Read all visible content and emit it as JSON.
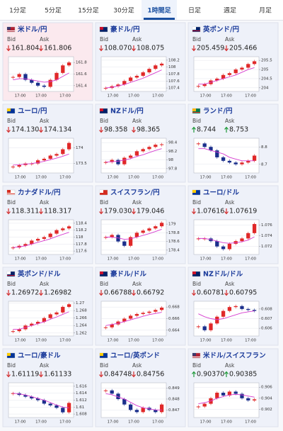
{
  "tabs": [
    "1分足",
    "5分足",
    "15分足",
    "30分足",
    "1時間足",
    "日足",
    "週足",
    "月足"
  ],
  "active_tab": 4,
  "labels": {
    "bid": "Bid",
    "ask": "Ask"
  },
  "time_label": "17:00",
  "cards": [
    {
      "name": "米ドル/円",
      "flag": "us",
      "tint": "pink",
      "bid": "161.804",
      "bid_dir": "down",
      "ask": "161.806",
      "ask_dir": "down",
      "chart": {
        "type": "candlestick",
        "ylim": [
          161.3,
          161.9
        ],
        "yticks": [
          161.4,
          161.6,
          161.8
        ],
        "close": [
          161.55,
          161.6,
          161.5,
          161.45,
          161.4,
          161.38,
          161.5,
          161.62,
          161.75,
          161.8
        ],
        "ma": [
          161.5,
          161.52,
          161.52,
          161.5,
          161.48,
          161.46,
          161.47,
          161.5,
          161.56,
          161.62
        ]
      }
    },
    {
      "name": "豪ドル/円",
      "flag": "au",
      "tint": "blue",
      "bid": "108.070",
      "bid_dir": "down",
      "ask": "108.075",
      "ask_dir": "down",
      "chart": {
        "type": "candlestick",
        "ylim": [
          107.3,
          108.3
        ],
        "yticks": [
          107.4,
          107.6,
          107.8,
          108,
          108.2
        ],
        "close": [
          107.4,
          107.45,
          107.5,
          107.6,
          107.7,
          107.75,
          107.85,
          107.95,
          108.05,
          108.1
        ],
        "ma": [
          107.4,
          107.42,
          107.46,
          107.5,
          107.56,
          107.62,
          107.68,
          107.76,
          107.84,
          107.92
        ]
      }
    },
    {
      "name": "英ポンド/円",
      "flag": "gb",
      "tint": "blue",
      "bid": "205.459",
      "bid_dir": "down",
      "ask": "205.466",
      "ask_dir": "down",
      "chart": {
        "type": "candlestick",
        "ylim": [
          203.8,
          205.7
        ],
        "yticks": [
          204,
          204.5,
          205,
          205.5
        ],
        "close": [
          204.1,
          204.2,
          204.4,
          204.5,
          204.7,
          204.8,
          205,
          205.1,
          205.3,
          205.45
        ],
        "ma": [
          204.2,
          204.2,
          204.3,
          204.4,
          204.5,
          204.6,
          204.7,
          204.85,
          205,
          205.1
        ]
      }
    },
    {
      "name": "ユーロ/円",
      "flag": "eu",
      "tint": "blue",
      "bid": "174.130",
      "bid_dir": "down",
      "ask": "174.134",
      "ask_dir": "down",
      "chart": {
        "type": "candlestick",
        "ylim": [
          173.2,
          174.3
        ],
        "yticks": [
          173.5,
          174
        ],
        "close": [
          173.4,
          173.45,
          173.5,
          173.5,
          173.6,
          173.65,
          173.75,
          173.8,
          173.95,
          174.15
        ],
        "ma": [
          173.45,
          173.46,
          173.48,
          173.5,
          173.53,
          173.57,
          173.62,
          173.67,
          173.73,
          173.8
        ]
      }
    },
    {
      "name": "NZドル/円",
      "flag": "nz",
      "tint": "blue",
      "bid": "98.358",
      "bid_dir": "down",
      "ask": "98.365",
      "ask_dir": "down",
      "chart": {
        "type": "candlestick",
        "ylim": [
          97.7,
          98.5
        ],
        "yticks": [
          97.8,
          98,
          98.2,
          98.4
        ],
        "close": [
          97.95,
          98,
          97.9,
          98.05,
          98.1,
          98.2,
          98.25,
          98.3,
          98.35,
          98.36
        ],
        "ma": [
          97.95,
          97.96,
          97.97,
          98,
          98.03,
          98.08,
          98.12,
          98.17,
          98.22,
          98.26
        ]
      }
    },
    {
      "name": "ランド/円",
      "flag": "za",
      "tint": "blue",
      "bid": "8.744",
      "bid_dir": "up",
      "ask": "8.753",
      "ask_dir": "up",
      "chart": {
        "type": "candlestick",
        "ylim": [
          8.65,
          8.85
        ],
        "yticks": [
          8.7,
          8.8
        ],
        "close": [
          8.82,
          8.8,
          8.78,
          8.74,
          8.72,
          8.71,
          8.7,
          8.71,
          8.72,
          8.75
        ],
        "ma": [
          8.79,
          8.79,
          8.78,
          8.77,
          8.76,
          8.74,
          8.73,
          8.72,
          8.72,
          8.72
        ]
      }
    },
    {
      "name": "カナダドル/円",
      "flag": "ca",
      "tint": "blue",
      "bid": "118.311",
      "bid_dir": "down",
      "ask": "118.317",
      "ask_dir": "down",
      "chart": {
        "type": "candlestick",
        "ylim": [
          117.5,
          118.5
        ],
        "yticks": [
          117.6,
          117.8,
          118,
          118.2,
          118.4
        ],
        "close": [
          117.7,
          117.75,
          117.8,
          117.9,
          117.95,
          118,
          118.1,
          118.2,
          118.25,
          118.31
        ],
        "ma": [
          117.7,
          117.72,
          117.75,
          117.8,
          117.85,
          117.9,
          117.95,
          118.02,
          118.08,
          118.14
        ]
      }
    },
    {
      "name": "スイスフラン/円",
      "flag": "ch",
      "tint": "blue",
      "bid": "179.030",
      "bid_dir": "down",
      "ask": "179.046",
      "ask_dir": "down",
      "chart": {
        "type": "candlestick",
        "ylim": [
          178.3,
          179.1
        ],
        "yticks": [
          178.4,
          178.6,
          178.8,
          179
        ],
        "close": [
          178.7,
          178.75,
          178.6,
          178.5,
          178.7,
          178.8,
          178.85,
          178.9,
          178.95,
          179.03
        ],
        "ma": [
          178.7,
          178.7,
          178.68,
          178.65,
          178.66,
          178.7,
          178.74,
          178.78,
          178.83,
          178.88
        ]
      }
    },
    {
      "name": "ユーロ/ドル",
      "flag": "eu",
      "tint": "blue",
      "bid": "1.07616",
      "bid_dir": "down",
      "ask": "1.07619",
      "ask_dir": "down",
      "chart": {
        "type": "candlestick",
        "ylim": [
          1.0705,
          1.077
        ],
        "yticks": [
          1.072,
          1.074,
          1.076
        ],
        "close": [
          1.0735,
          1.0735,
          1.073,
          1.072,
          1.0715,
          1.0725,
          1.073,
          1.0735,
          1.0745,
          1.0762
        ],
        "ma": [
          1.0735,
          1.0735,
          1.0733,
          1.073,
          1.0727,
          1.0726,
          1.0727,
          1.0729,
          1.0732,
          1.0738
        ]
      }
    },
    {
      "name": "英ポンド/ドル",
      "flag": "gb",
      "tint": "blue",
      "bid": "1.26972",
      "bid_dir": "down",
      "ask": "1.26982",
      "ask_dir": "down",
      "chart": {
        "type": "candlestick",
        "ylim": [
          1.2612,
          1.2705
        ],
        "yticks": [
          1.262,
          1.264,
          1.266,
          1.268,
          1.27
        ],
        "close": [
          1.2625,
          1.263,
          1.264,
          1.2645,
          1.265,
          1.266,
          1.267,
          1.2675,
          1.269,
          1.2697
        ],
        "ma": [
          1.263,
          1.263,
          1.2635,
          1.264,
          1.2645,
          1.265,
          1.2657,
          1.2663,
          1.267,
          1.2677
        ]
      }
    },
    {
      "name": "豪ドル/ドル",
      "flag": "au",
      "tint": "blue",
      "bid": "0.66788",
      "bid_dir": "down",
      "ask": "0.66792",
      "ask_dir": "down",
      "chart": {
        "type": "candlestick",
        "ylim": [
          0.663,
          0.669
        ],
        "yticks": [
          0.664,
          0.666,
          0.668
        ],
        "close": [
          0.6645,
          0.665,
          0.6655,
          0.666,
          0.6665,
          0.6668,
          0.667,
          0.6672,
          0.6675,
          0.6679
        ],
        "ma": [
          0.6648,
          0.665,
          0.6652,
          0.6655,
          0.6658,
          0.6661,
          0.6664,
          0.6667,
          0.6669,
          0.6671
        ]
      }
    },
    {
      "name": "NZドル/ドル",
      "flag": "nz",
      "tint": "blue",
      "bid": "0.60781",
      "bid_dir": "down",
      "ask": "0.60795",
      "ask_dir": "down",
      "chart": {
        "type": "candlestick",
        "ylim": [
          0.6052,
          0.6088
        ],
        "yticks": [
          0.606,
          0.607,
          0.608
        ],
        "close": [
          0.6062,
          0.6058,
          0.6065,
          0.6072,
          0.6078,
          0.6082,
          0.6083,
          0.608,
          0.6079,
          0.6078
        ],
        "ma": [
          0.6075,
          0.6072,
          0.607,
          0.6069,
          0.607,
          0.6072,
          0.6074,
          0.6076,
          0.6077,
          0.6078
        ]
      }
    },
    {
      "name": "ユーロ/豪ドル",
      "flag": "eu",
      "tint": "blue",
      "bid": "1.61119",
      "bid_dir": "down",
      "ask": "1.61133",
      "ask_dir": "down",
      "chart": {
        "type": "candlestick",
        "ylim": [
          1.607,
          1.617
        ],
        "yticks": [
          1.608,
          1.61,
          1.612,
          1.614,
          1.616
        ],
        "close": [
          1.614,
          1.6135,
          1.613,
          1.6125,
          1.612,
          1.611,
          1.6105,
          1.6098,
          1.6085,
          1.6112
        ],
        "ma": [
          1.614,
          1.6138,
          1.6135,
          1.613,
          1.6125,
          1.612,
          1.6113,
          1.6106,
          1.61,
          1.6098
        ]
      }
    },
    {
      "name": "ユーロ/英ポンド",
      "flag": "eu",
      "tint": "blue",
      "bid": "0.84748",
      "bid_dir": "down",
      "ask": "0.84756",
      "ask_dir": "down",
      "chart": {
        "type": "candlestick",
        "ylim": [
          0.8463,
          0.8495
        ],
        "yticks": [
          0.847,
          0.848,
          0.849
        ],
        "close": [
          0.8488,
          0.8485,
          0.848,
          0.8475,
          0.847,
          0.8468,
          0.8472,
          0.847,
          0.8468,
          0.8475
        ],
        "ma": [
          0.8485,
          0.8484,
          0.8482,
          0.848,
          0.8477,
          0.8474,
          0.8472,
          0.8471,
          0.847,
          0.847
        ]
      }
    },
    {
      "name": "米ドル/スイスフラン",
      "flag": "us",
      "tint": "blue",
      "bid": "0.90370",
      "bid_dir": "up",
      "ask": "0.90385",
      "ask_dir": "up",
      "chart": {
        "type": "candlestick",
        "ylim": [
          0.9005,
          0.9068
        ],
        "yticks": [
          0.902,
          0.904,
          0.906
        ],
        "close": [
          0.9025,
          0.903,
          0.904,
          0.905,
          0.9045,
          0.9052,
          0.9048,
          0.904,
          0.9036,
          0.9038
        ],
        "ma": [
          0.903,
          0.9032,
          0.9035,
          0.904,
          0.9043,
          0.9046,
          0.9047,
          0.9046,
          0.9044,
          0.9042
        ]
      }
    }
  ]
}
